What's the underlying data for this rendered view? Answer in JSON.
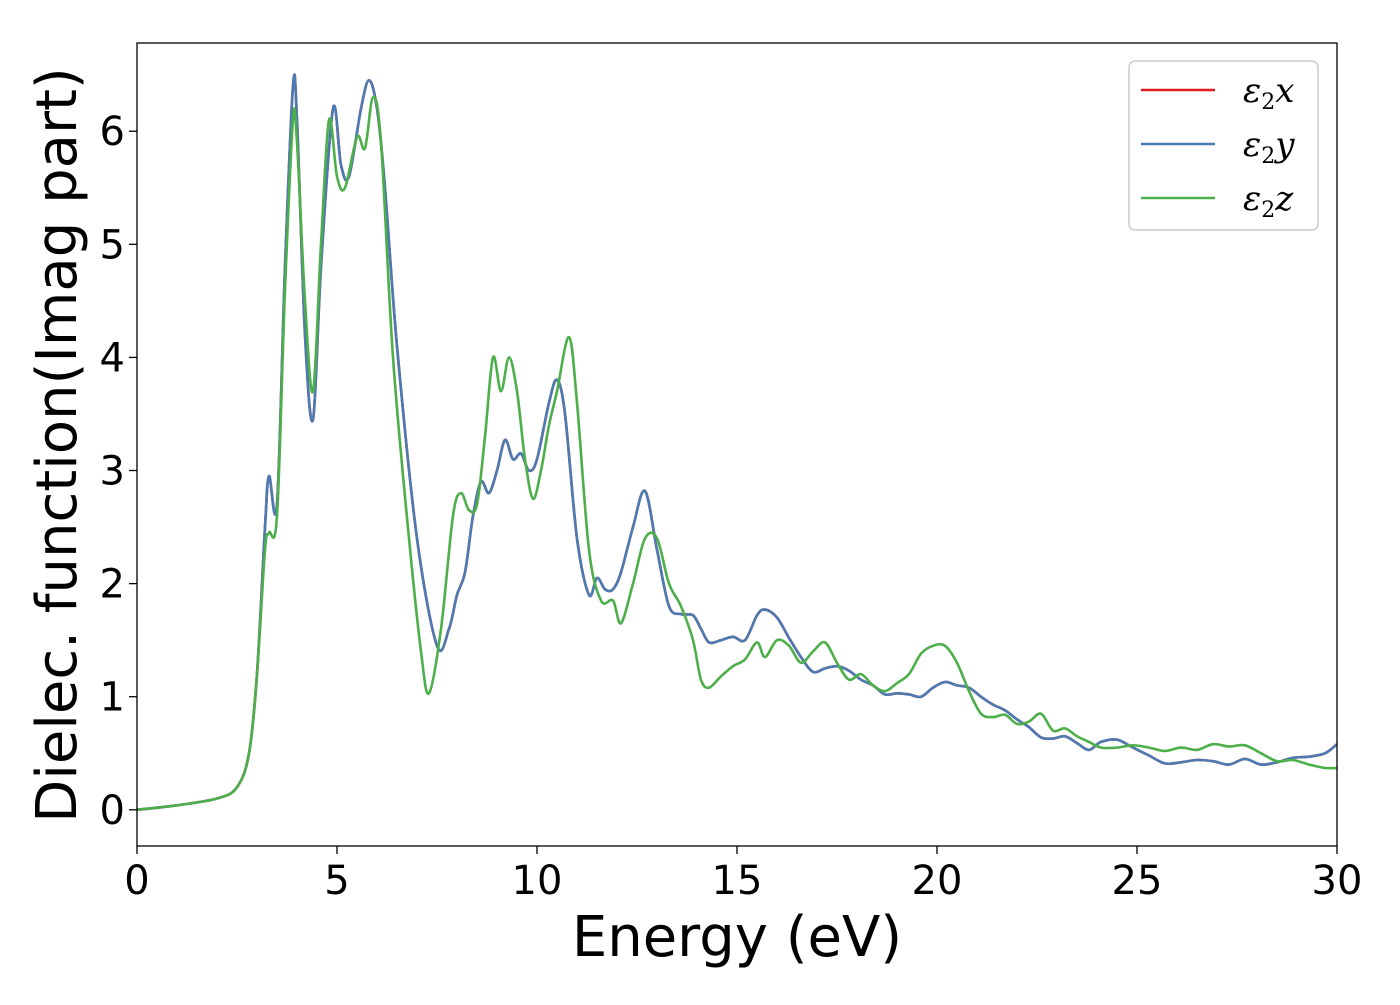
{
  "chart_data": {
    "type": "line",
    "xlabel": "Energy (eV)",
    "ylabel": "Dielec. function(Imag part)",
    "xlim": [
      0,
      30
    ],
    "ylim": [
      -0.32,
      6.78
    ],
    "xticks": [
      0,
      5,
      10,
      15,
      20,
      25,
      30
    ],
    "yticks": [
      0,
      1,
      2,
      3,
      4,
      5,
      6
    ],
    "grid": false,
    "legend_position": "top-right",
    "series": [
      {
        "name": "ε2x",
        "legend_main": "ε",
        "legend_sub": "2",
        "legend_tail": "x",
        "color": "#e41a1c",
        "x": [
          0,
          1,
          2,
          2.5,
          2.8,
          3.0,
          3.2,
          3.3,
          3.5,
          3.7,
          3.9,
          4.0,
          4.2,
          4.4,
          4.6,
          4.9,
          5.1,
          5.3,
          5.6,
          5.8,
          6.0,
          6.2,
          6.5,
          7.0,
          7.5,
          7.8,
          8.0,
          8.2,
          8.4,
          8.6,
          8.8,
          9.0,
          9.2,
          9.4,
          9.6,
          9.8,
          10.0,
          10.3,
          10.5,
          10.7,
          11.0,
          11.3,
          11.5,
          11.7,
          11.9,
          12.1,
          12.4,
          12.7,
          13.0,
          13.3,
          13.6,
          13.9,
          14.1,
          14.3,
          14.6,
          14.9,
          15.2,
          15.5,
          15.7,
          16.0,
          16.3,
          16.6,
          16.9,
          17.2,
          17.5,
          17.8,
          18.1,
          18.4,
          18.7,
          19.0,
          19.3,
          19.6,
          19.9,
          20.2,
          20.5,
          20.8,
          21.1,
          21.4,
          21.7,
          22.0,
          22.3,
          22.6,
          22.9,
          23.2,
          23.5,
          23.8,
          24.1,
          24.5,
          24.9,
          25.3,
          25.7,
          26.1,
          26.5,
          26.9,
          27.3,
          27.7,
          28.1,
          28.5,
          28.9,
          29.3,
          29.7,
          30
        ],
        "y": [
          0,
          0.04,
          0.1,
          0.2,
          0.5,
          1.2,
          2.5,
          2.95,
          2.7,
          4.8,
          6.4,
          6.1,
          4.2,
          3.45,
          4.8,
          6.2,
          5.7,
          5.6,
          6.2,
          6.45,
          6.2,
          5.5,
          4.1,
          2.4,
          1.45,
          1.6,
          1.9,
          2.1,
          2.6,
          2.9,
          2.8,
          3.0,
          3.27,
          3.1,
          3.15,
          3.0,
          3.1,
          3.6,
          3.8,
          3.5,
          2.4,
          1.9,
          2.05,
          1.95,
          1.95,
          2.1,
          2.5,
          2.82,
          2.3,
          1.8,
          1.73,
          1.72,
          1.6,
          1.48,
          1.5,
          1.53,
          1.5,
          1.72,
          1.77,
          1.7,
          1.52,
          1.35,
          1.22,
          1.25,
          1.27,
          1.23,
          1.15,
          1.1,
          1.02,
          1.03,
          1.02,
          1.0,
          1.08,
          1.13,
          1.1,
          1.08,
          1.0,
          0.93,
          0.88,
          0.8,
          0.73,
          0.64,
          0.63,
          0.65,
          0.59,
          0.53,
          0.6,
          0.62,
          0.55,
          0.48,
          0.41,
          0.42,
          0.44,
          0.43,
          0.4,
          0.45,
          0.4,
          0.42,
          0.46,
          0.47,
          0.5,
          0.58
        ]
      },
      {
        "name": "ε2y",
        "legend_main": "ε",
        "legend_sub": "2",
        "legend_tail": "y",
        "color": "#4a7bb3",
        "x": [
          0,
          1,
          2,
          2.5,
          2.8,
          3.0,
          3.2,
          3.3,
          3.5,
          3.7,
          3.9,
          4.0,
          4.2,
          4.4,
          4.6,
          4.9,
          5.1,
          5.3,
          5.6,
          5.8,
          6.0,
          6.2,
          6.5,
          7.0,
          7.5,
          7.8,
          8.0,
          8.2,
          8.4,
          8.6,
          8.8,
          9.0,
          9.2,
          9.4,
          9.6,
          9.8,
          10.0,
          10.3,
          10.5,
          10.7,
          11.0,
          11.3,
          11.5,
          11.7,
          11.9,
          12.1,
          12.4,
          12.7,
          13.0,
          13.3,
          13.6,
          13.9,
          14.1,
          14.3,
          14.6,
          14.9,
          15.2,
          15.5,
          15.7,
          16.0,
          16.3,
          16.6,
          16.9,
          17.2,
          17.5,
          17.8,
          18.1,
          18.4,
          18.7,
          19.0,
          19.3,
          19.6,
          19.9,
          20.2,
          20.5,
          20.8,
          21.1,
          21.4,
          21.7,
          22.0,
          22.3,
          22.6,
          22.9,
          23.2,
          23.5,
          23.8,
          24.1,
          24.5,
          24.9,
          25.3,
          25.7,
          26.1,
          26.5,
          26.9,
          27.3,
          27.7,
          28.1,
          28.5,
          28.9,
          29.3,
          29.7,
          30
        ],
        "y": [
          0,
          0.04,
          0.1,
          0.2,
          0.5,
          1.2,
          2.5,
          2.95,
          2.7,
          4.8,
          6.4,
          6.1,
          4.2,
          3.45,
          4.8,
          6.2,
          5.7,
          5.6,
          6.2,
          6.45,
          6.2,
          5.5,
          4.1,
          2.4,
          1.45,
          1.6,
          1.9,
          2.1,
          2.6,
          2.9,
          2.8,
          3.0,
          3.27,
          3.1,
          3.15,
          3.0,
          3.1,
          3.6,
          3.8,
          3.5,
          2.4,
          1.9,
          2.05,
          1.95,
          1.95,
          2.1,
          2.5,
          2.82,
          2.3,
          1.8,
          1.73,
          1.72,
          1.6,
          1.48,
          1.5,
          1.53,
          1.5,
          1.72,
          1.77,
          1.7,
          1.52,
          1.35,
          1.22,
          1.25,
          1.27,
          1.23,
          1.15,
          1.1,
          1.02,
          1.03,
          1.02,
          1.0,
          1.08,
          1.13,
          1.1,
          1.08,
          1.0,
          0.93,
          0.88,
          0.8,
          0.73,
          0.64,
          0.63,
          0.65,
          0.59,
          0.53,
          0.6,
          0.62,
          0.55,
          0.48,
          0.41,
          0.42,
          0.44,
          0.43,
          0.4,
          0.45,
          0.4,
          0.42,
          0.46,
          0.47,
          0.5,
          0.58
        ]
      },
      {
        "name": "ε2z",
        "legend_main": "ε",
        "legend_sub": "2",
        "legend_tail": "z",
        "color": "#4daf4a",
        "x": [
          0,
          1,
          2,
          2.5,
          2.8,
          3.0,
          3.2,
          3.3,
          3.5,
          3.7,
          3.9,
          4.0,
          4.2,
          4.4,
          4.6,
          4.8,
          5.0,
          5.2,
          5.5,
          5.7,
          5.9,
          6.1,
          6.4,
          6.8,
          7.1,
          7.3,
          7.6,
          7.9,
          8.1,
          8.3,
          8.5,
          8.7,
          8.9,
          9.1,
          9.3,
          9.5,
          9.7,
          9.9,
          10.1,
          10.3,
          10.5,
          10.8,
          11.0,
          11.3,
          11.6,
          11.9,
          12.1,
          12.4,
          12.7,
          13.0,
          13.3,
          13.6,
          13.9,
          14.1,
          14.3,
          14.6,
          14.9,
          15.2,
          15.5,
          15.7,
          16.0,
          16.3,
          16.6,
          16.9,
          17.2,
          17.5,
          17.8,
          18.1,
          18.4,
          18.7,
          19.0,
          19.3,
          19.6,
          19.9,
          20.2,
          20.5,
          20.8,
          21.1,
          21.4,
          21.7,
          22.0,
          22.3,
          22.6,
          22.9,
          23.2,
          23.5,
          23.8,
          24.1,
          24.5,
          24.9,
          25.3,
          25.7,
          26.1,
          26.5,
          26.9,
          27.3,
          27.7,
          28.1,
          28.5,
          28.9,
          29.3,
          29.7,
          30
        ],
        "y": [
          0,
          0.04,
          0.1,
          0.2,
          0.5,
          1.2,
          2.3,
          2.45,
          2.6,
          4.6,
          6.1,
          5.9,
          4.5,
          3.7,
          5.0,
          6.1,
          5.6,
          5.5,
          5.95,
          5.85,
          6.3,
          5.9,
          4.0,
          2.4,
          1.4,
          1.03,
          1.6,
          2.6,
          2.8,
          2.65,
          2.7,
          3.3,
          4.0,
          3.7,
          4.0,
          3.7,
          3.1,
          2.75,
          3.0,
          3.4,
          3.7,
          4.18,
          3.6,
          2.3,
          1.85,
          1.85,
          1.65,
          2.0,
          2.4,
          2.4,
          2.0,
          1.8,
          1.5,
          1.15,
          1.08,
          1.18,
          1.27,
          1.33,
          1.48,
          1.35,
          1.5,
          1.45,
          1.3,
          1.4,
          1.48,
          1.3,
          1.15,
          1.2,
          1.1,
          1.05,
          1.12,
          1.2,
          1.38,
          1.45,
          1.45,
          1.3,
          1.05,
          0.85,
          0.82,
          0.84,
          0.76,
          0.78,
          0.85,
          0.7,
          0.72,
          0.65,
          0.6,
          0.55,
          0.55,
          0.57,
          0.55,
          0.52,
          0.55,
          0.53,
          0.58,
          0.56,
          0.57,
          0.5,
          0.43,
          0.44,
          0.4,
          0.37,
          0.37
        ]
      }
    ]
  }
}
